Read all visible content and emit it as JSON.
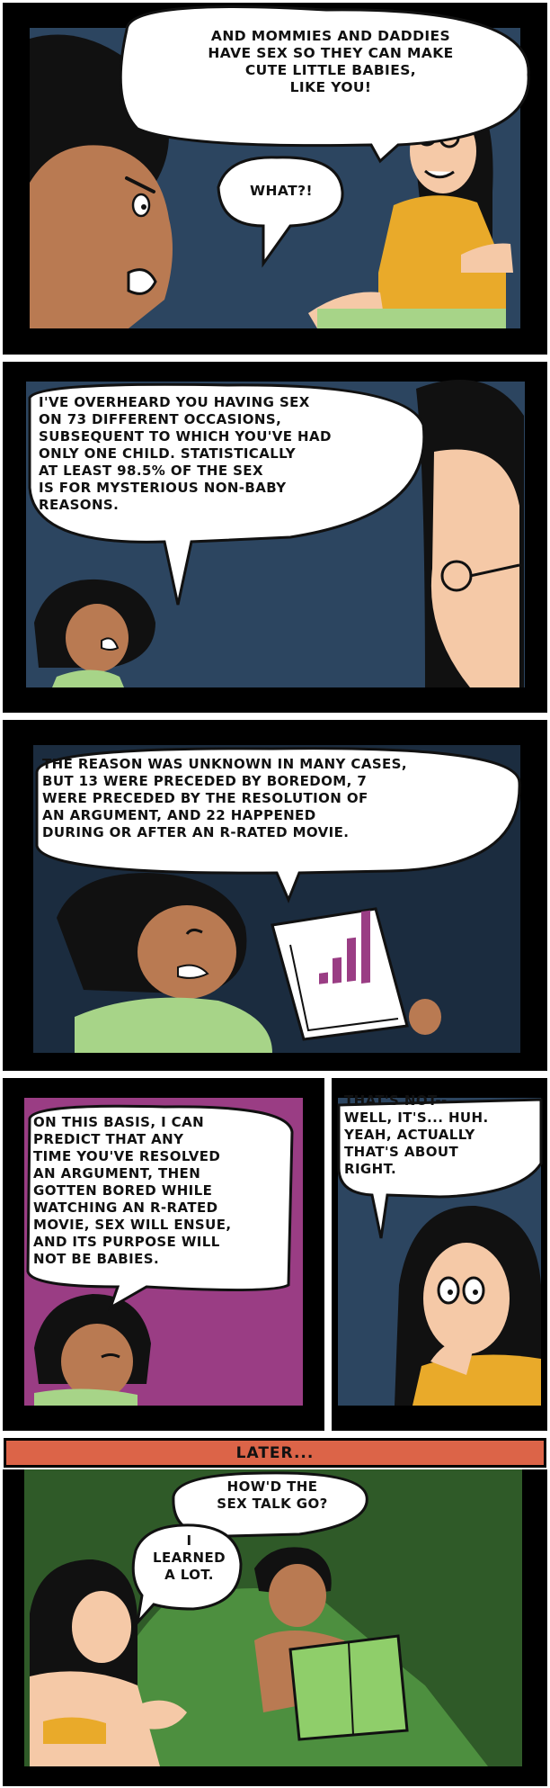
{
  "comic": {
    "panel1": {
      "mom_speech": "AND MOMMIES AND DADDIES\nHAVE SEX SO THEY CAN MAKE\nCUTE LITTLE BABIES,\nLIKE YOU!",
      "kid_speech": "WHAT?!"
    },
    "panel2": {
      "kid_speech": "I'VE OVERHEARD YOU HAVING SEX\nON 73 DIFFERENT OCCASIONS,\nSUBSEQUENT TO WHICH YOU'VE HAD\nONLY ONE CHILD. STATISTICALLY\nAT LEAST 98.5% OF THE SEX\nIS FOR MYSTERIOUS NON-BABY\nREASONS."
    },
    "panel3": {
      "kid_speech": "THE REASON WAS UNKNOWN IN MANY CASES,\nBUT 13 WERE PRECEDED BY BOREDOM, 7\nWERE PRECEDED BY THE RESOLUTION OF\nAN ARGUMENT, AND 22 HAPPENED\nDURING OR AFTER AN R-RATED MOVIE."
    },
    "panel4": {
      "kid_speech": "ON THIS BASIS, I CAN\nPREDICT THAT ANY\nTIME YOU'VE RESOLVED\nAN ARGUMENT, THEN\nGOTTEN BORED WHILE\nWATCHING AN R-RATED\nMOVIE, SEX WILL ENSUE,\nAND ITS PURPOSE WILL\nNOT BE BABIES."
    },
    "panel5": {
      "mom_speech": "THAT'S NOT--\nWELL, IT'S... HUH.\nYEAH, ACTUALLY\nTHAT'S ABOUT\nRIGHT."
    },
    "later_caption": "LATER...",
    "panel6": {
      "dad_speech": "HOW'D THE\nSEX TALK GO?",
      "mom_speech": "I\nLEARNED\nA LOT."
    }
  },
  "colors": {
    "night_blue": "#2c4560",
    "dark_navy": "#1b2c3f",
    "purple": "#9a3d84",
    "green_room": "#2f5a28",
    "skin_brown": "#b97a52",
    "skin_light": "#f5c9a7",
    "shirt_yellow": "#e9aa2a",
    "shirt_green": "#a7d488",
    "banner": "#dc6448"
  }
}
